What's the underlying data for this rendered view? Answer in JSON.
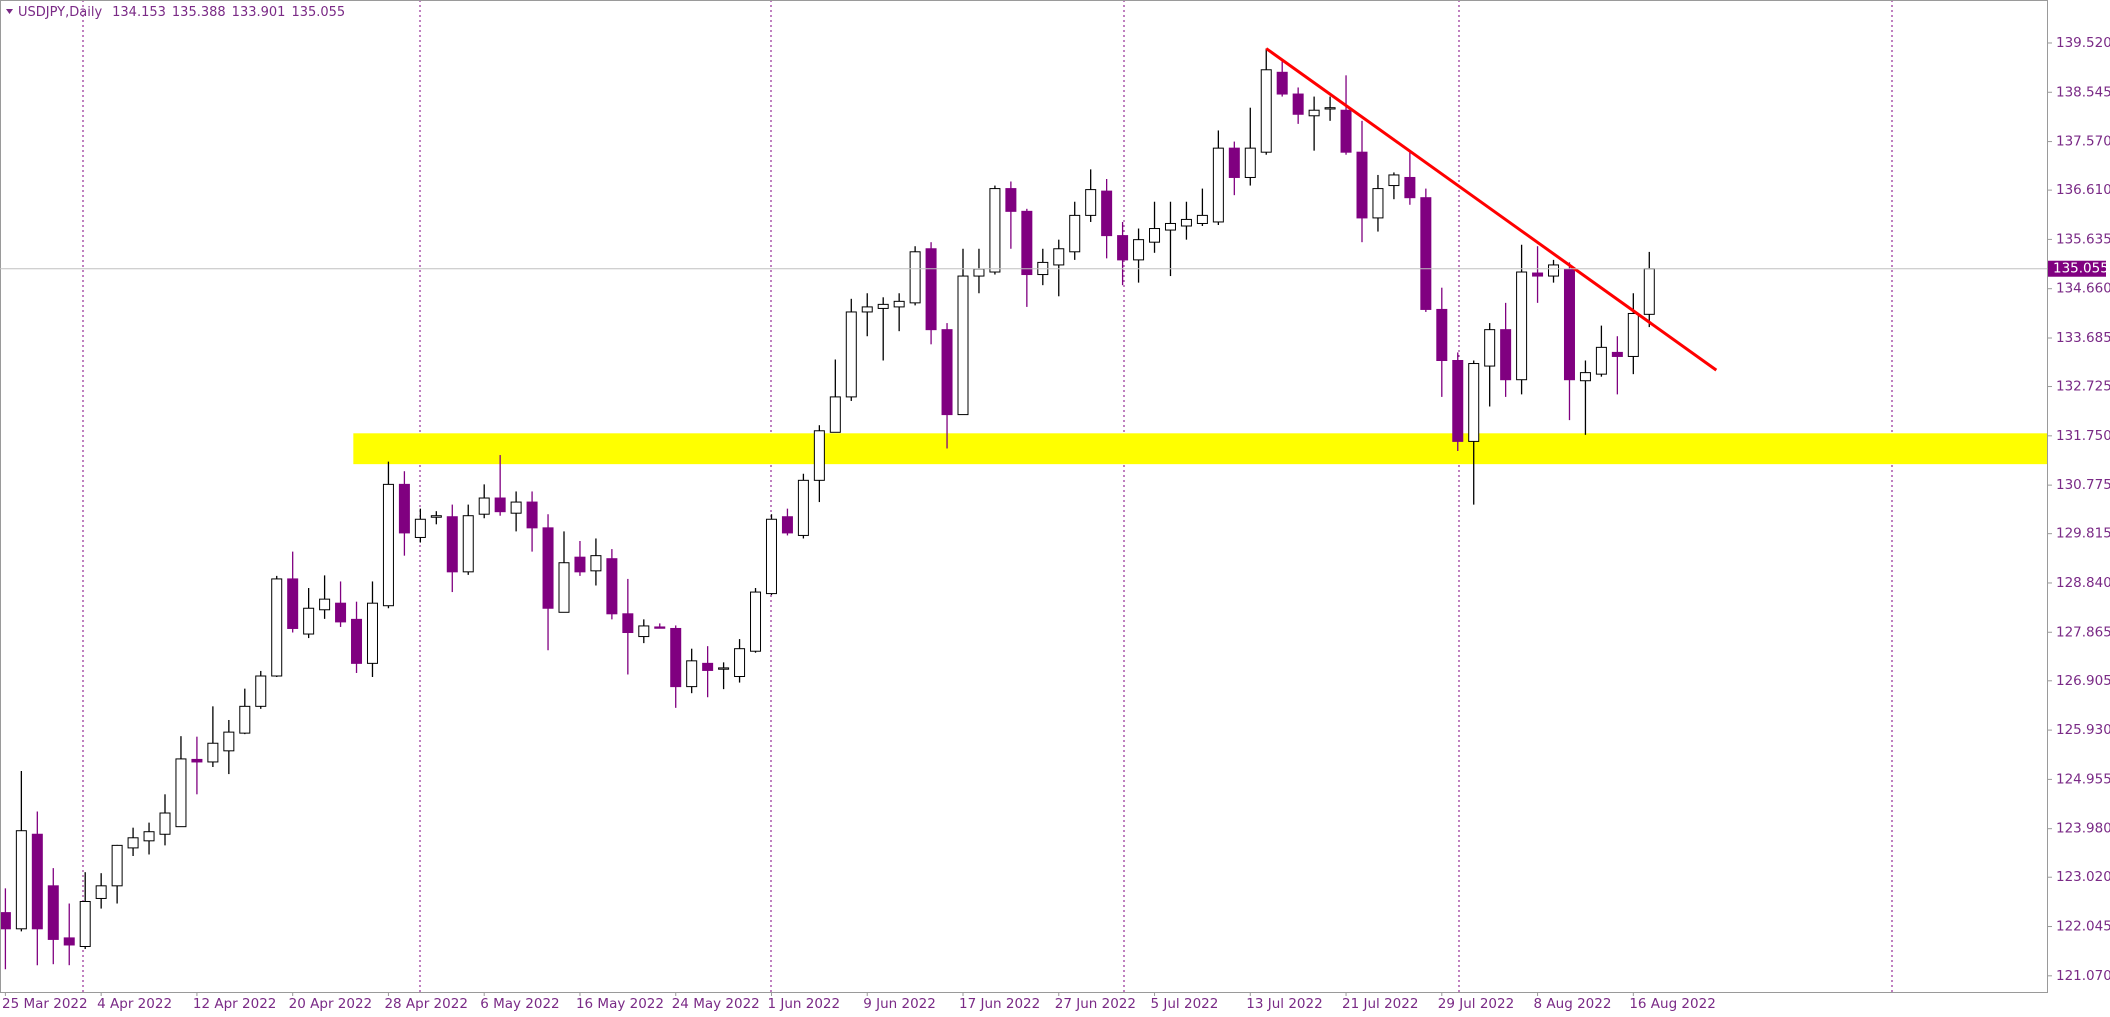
{
  "chart_data": {
    "type": "candlestick",
    "title": "USDJPY,Daily",
    "categories": [
      "25 Mar 2022",
      null,
      null,
      null,
      null,
      null,
      "4 Apr 2022",
      null,
      null,
      null,
      null,
      null,
      "12 Apr 2022",
      null,
      null,
      null,
      null,
      null,
      "20 Apr 2022",
      null,
      null,
      null,
      null,
      null,
      "28 Apr 2022",
      null,
      null,
      null,
      null,
      null,
      "6 May 2022",
      null,
      null,
      null,
      null,
      null,
      "16 May 2022",
      null,
      null,
      null,
      null,
      null,
      "24 May 2022",
      null,
      null,
      null,
      null,
      null,
      "1 Jun 2022",
      null,
      null,
      null,
      null,
      null,
      "9 Jun 2022",
      null,
      null,
      null,
      null,
      null,
      "17 Jun 2022",
      null,
      null,
      null,
      null,
      null,
      "27 Jun 2022",
      null,
      null,
      null,
      null,
      null,
      "5 Jul 2022",
      null,
      null,
      null,
      null,
      null,
      "13 Jul 2022",
      null,
      null,
      null,
      null,
      null,
      "21 Jul 2022",
      null,
      null,
      null,
      null,
      null,
      "29 Jul 2022",
      null,
      null,
      null,
      null,
      null,
      "8 Aug 2022",
      null,
      null,
      null,
      null,
      null,
      "16 Aug 2022",
      null
    ],
    "open": [
      122.32,
      122.0,
      123.87,
      122.85,
      121.82,
      121.65,
      122.6,
      122.85,
      123.6,
      123.74,
      123.87,
      124.02,
      125.35,
      125.3,
      125.52,
      125.87,
      126.4,
      127.0,
      128.92,
      127.83,
      128.31,
      128.44,
      128.12,
      127.25,
      128.39,
      130.79,
      129.74,
      130.14,
      130.15,
      129.06,
      130.2,
      130.52,
      130.22,
      130.44,
      129.93,
      128.26,
      129.35,
      129.08,
      129.32,
      128.23,
      127.78,
      127.97,
      127.94,
      126.79,
      127.25,
      127.14,
      126.99,
      127.49,
      128.63,
      130.15,
      129.78,
      130.87,
      131.82,
      132.52,
      134.2,
      134.27,
      134.3,
      134.38,
      135.45,
      133.85,
      132.17,
      134.91,
      134.99,
      136.64,
      136.19,
      134.94,
      135.13,
      135.39,
      136.11,
      136.59,
      135.71,
      135.23,
      135.58,
      135.82,
      135.9,
      135.95,
      135.98,
      137.44,
      136.86,
      137.36,
      138.94,
      138.51,
      138.08,
      138.24,
      138.19,
      137.36,
      136.06,
      136.7,
      136.86,
      136.46,
      134.25,
      133.24,
      131.64,
      133.13,
      133.85,
      132.86,
      134.97,
      134.91,
      135.05,
      132.84,
      132.97,
      133.4,
      133.32,
      134.153
    ],
    "high": [
      122.8,
      125.12,
      124.32,
      123.2,
      122.5,
      123.12,
      123.1,
      123.66,
      124.0,
      124.1,
      124.66,
      125.81,
      125.8,
      126.4,
      126.13,
      126.75,
      127.1,
      128.98,
      129.46,
      128.74,
      128.99,
      128.87,
      128.47,
      128.87,
      131.24,
      131.05,
      130.31,
      130.26,
      130.39,
      130.39,
      130.79,
      131.37,
      130.65,
      130.65,
      130.2,
      129.86,
      129.67,
      129.72,
      129.51,
      128.92,
      128.12,
      128.04,
      128.0,
      127.54,
      127.59,
      127.27,
      127.73,
      128.74,
      130.2,
      130.31,
      131.0,
      131.96,
      133.26,
      134.46,
      134.57,
      134.49,
      134.57,
      135.5,
      135.58,
      133.98,
      135.45,
      135.45,
      136.7,
      136.78,
      136.24,
      135.45,
      135.63,
      136.38,
      137.02,
      136.83,
      135.98,
      135.85,
      136.38,
      136.38,
      136.38,
      136.64,
      137.79,
      137.57,
      138.24,
      139.41,
      139.17,
      138.64,
      138.46,
      138.46,
      138.88,
      137.98,
      136.91,
      136.96,
      137.39,
      136.64,
      134.68,
      133.4,
      133.24,
      133.98,
      134.38,
      135.53,
      135.5,
      135.23,
      135.18,
      133.24,
      133.93,
      133.72,
      134.57,
      135.388
    ],
    "low": [
      121.2,
      121.95,
      121.28,
      121.3,
      121.28,
      121.6,
      122.4,
      122.5,
      123.44,
      123.47,
      123.65,
      124.02,
      124.66,
      125.2,
      125.06,
      125.85,
      126.35,
      126.98,
      127.86,
      127.75,
      128.13,
      127.97,
      127.06,
      126.98,
      128.34,
      129.38,
      129.64,
      130.0,
      128.66,
      129.0,
      130.12,
      130.17,
      129.86,
      129.46,
      127.51,
      128.26,
      128.98,
      128.79,
      128.12,
      127.03,
      127.65,
      127.94,
      126.37,
      126.66,
      126.58,
      126.74,
      126.87,
      127.46,
      128.6,
      129.78,
      129.72,
      130.44,
      131.82,
      132.44,
      133.72,
      133.24,
      133.82,
      134.33,
      133.56,
      131.5,
      132.17,
      134.57,
      134.94,
      135.45,
      134.3,
      134.73,
      134.51,
      135.23,
      135.98,
      135.26,
      134.73,
      134.78,
      135.37,
      134.91,
      135.63,
      135.9,
      135.92,
      136.51,
      136.7,
      137.31,
      138.46,
      137.92,
      137.39,
      137.98,
      137.31,
      135.58,
      135.79,
      136.43,
      136.32,
      134.2,
      132.52,
      131.45,
      130.39,
      132.33,
      132.52,
      132.57,
      134.38,
      134.78,
      132.06,
      131.77,
      132.92,
      132.57,
      132.97,
      133.901
    ],
    "close": [
      122.0,
      123.94,
      122.0,
      121.79,
      121.68,
      122.54,
      122.85,
      123.65,
      123.8,
      123.92,
      124.29,
      125.36,
      125.3,
      125.67,
      125.89,
      126.4,
      127.0,
      128.92,
      127.94,
      128.34,
      128.52,
      128.07,
      127.25,
      128.44,
      130.79,
      129.83,
      130.1,
      130.17,
      129.06,
      130.17,
      130.52,
      130.25,
      130.44,
      129.93,
      128.34,
      129.24,
      129.06,
      129.38,
      128.23,
      127.86,
      127.99,
      127.96,
      126.79,
      127.3,
      127.11,
      127.16,
      127.54,
      128.66,
      130.1,
      129.83,
      130.87,
      131.85,
      132.52,
      134.2,
      134.3,
      134.35,
      134.41,
      135.39,
      133.85,
      132.17,
      134.91,
      135.05,
      136.64,
      136.19,
      134.94,
      135.18,
      135.45,
      136.11,
      136.62,
      135.71,
      135.23,
      135.63,
      135.85,
      135.95,
      136.03,
      136.11,
      137.44,
      136.86,
      137.44,
      138.99,
      138.51,
      138.11,
      138.19,
      138.24,
      137.36,
      136.06,
      136.64,
      136.91,
      136.46,
      134.25,
      133.24,
      131.64,
      133.18,
      133.85,
      132.86,
      134.99,
      134.91,
      135.13,
      132.86,
      133.0,
      133.5,
      133.32,
      134.17,
      135.055
    ],
    "up_color": "#ffffff",
    "down_color": "#800080",
    "ylim": [
      120.75,
      140.37
    ],
    "yticks": [
      {
        "value": 139.52,
        "label": "139.520"
      },
      {
        "value": 138.545,
        "label": "138.545"
      },
      {
        "value": 137.57,
        "label": "137.570"
      },
      {
        "value": 136.61,
        "label": "136.610"
      },
      {
        "value": 135.635,
        "label": "135.635"
      },
      {
        "value": 134.66,
        "label": "134.660"
      },
      {
        "value": 133.685,
        "label": "133.685"
      },
      {
        "value": 132.725,
        "label": "132.725"
      },
      {
        "value": 131.75,
        "label": "131.750"
      },
      {
        "value": 130.775,
        "label": "130.775"
      },
      {
        "value": 129.815,
        "label": "129.815"
      },
      {
        "value": 128.84,
        "label": "128.840"
      },
      {
        "value": 127.865,
        "label": "127.865"
      },
      {
        "value": 126.905,
        "label": "126.905"
      },
      {
        "value": 125.93,
        "label": "125.930"
      },
      {
        "value": 124.955,
        "label": "124.955"
      },
      {
        "value": 123.98,
        "label": "123.980"
      },
      {
        "value": 123.02,
        "label": "123.020"
      },
      {
        "value": 122.045,
        "label": "122.045"
      },
      {
        "value": 121.07,
        "label": "121.070"
      }
    ],
    "grid": false,
    "support_zone": {
      "low": 131.19,
      "high": 131.8,
      "start": 21.8,
      "color": "#ffff00"
    },
    "trendline": {
      "x": [
        79,
        107.2
      ],
      "y": [
        139.41,
        133.05
      ],
      "color": "#ff0000"
    }
  }
}
